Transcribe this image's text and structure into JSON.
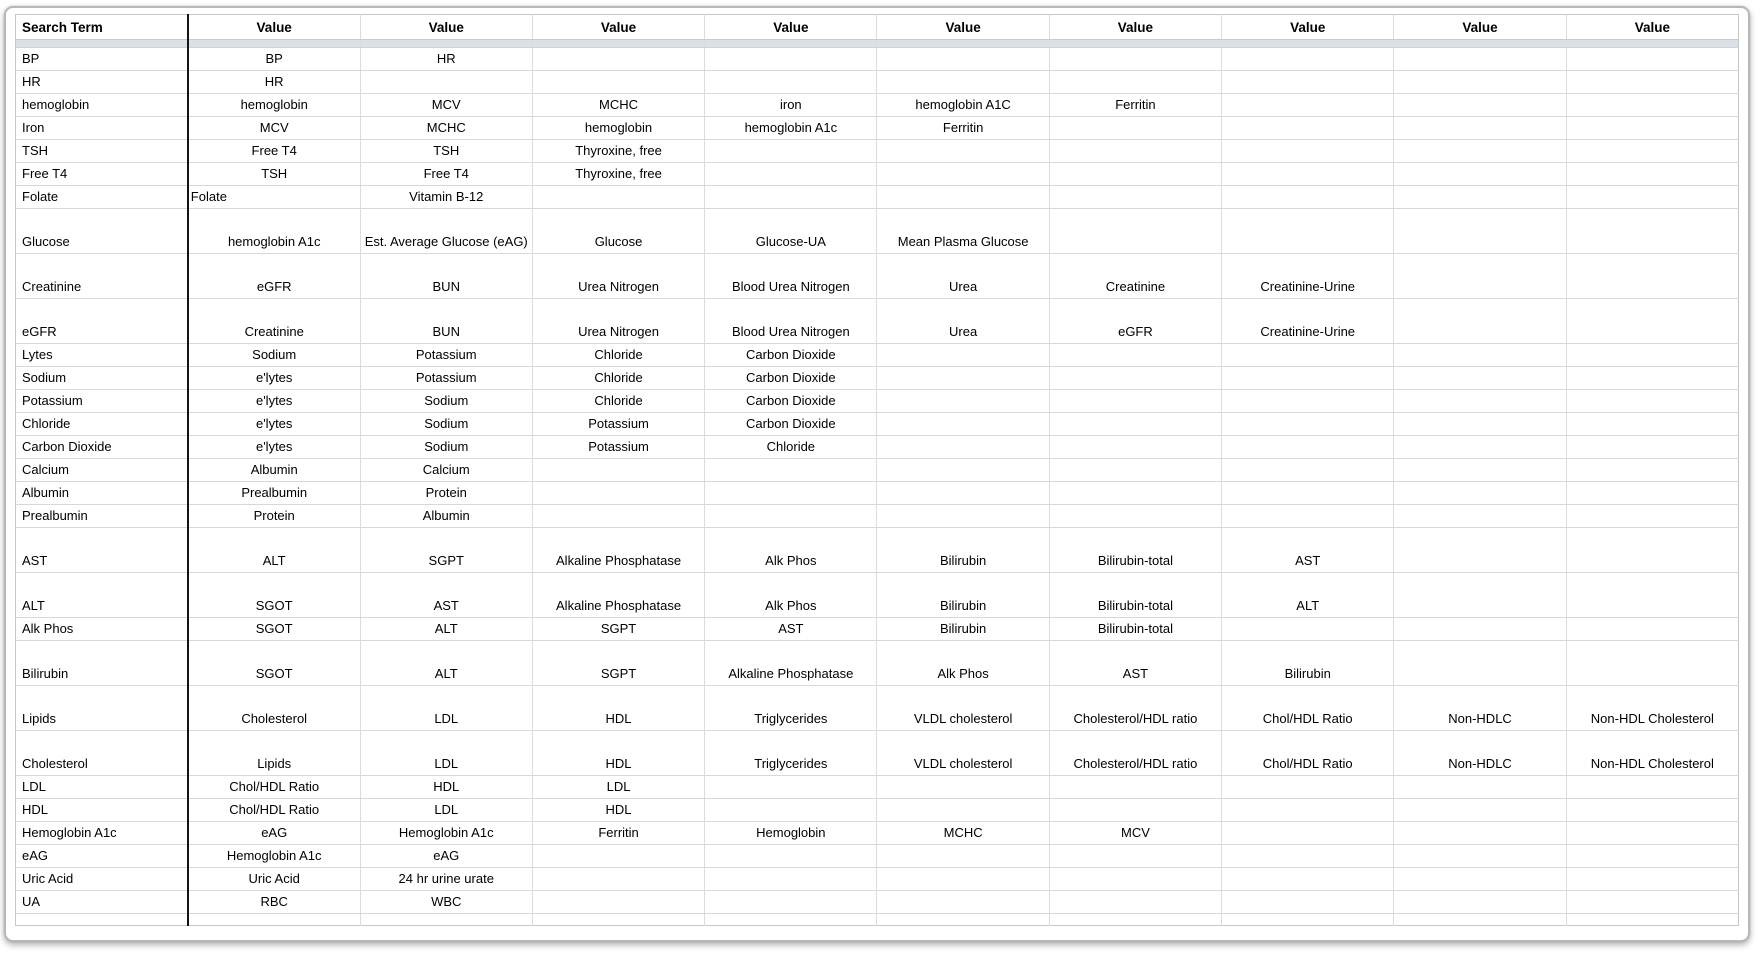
{
  "table": {
    "header": {
      "search_term": "Search Term",
      "value_headers": [
        "Value",
        "Value",
        "Value",
        "Value",
        "Value",
        "Value",
        "Value",
        "Value",
        "Value"
      ]
    },
    "colors": {
      "separator_band": "#dbe0e7",
      "grid_line": "#d8d8d8",
      "term_divider": "#141414",
      "frame_border": "#b4b8bd",
      "text": "#000000"
    },
    "rows": [
      {
        "term": "BP",
        "values": [
          "BP",
          "HR"
        ]
      },
      {
        "term": "HR",
        "values": [
          "HR"
        ]
      },
      {
        "term": "hemoglobin",
        "values": [
          "hemoglobin",
          "MCV",
          "MCHC",
          "iron",
          "hemoglobin A1C",
          "Ferritin"
        ]
      },
      {
        "term": "Iron",
        "values": [
          "MCV",
          "MCHC",
          "hemoglobin",
          "hemoglobin A1c",
          "Ferritin"
        ]
      },
      {
        "term": "TSH",
        "values": [
          "Free T4",
          "TSH",
          "Thyroxine, free"
        ]
      },
      {
        "term": "Free T4",
        "values": [
          "TSH",
          "Free T4",
          "Thyroxine, free"
        ]
      },
      {
        "term": "Folate",
        "values": [
          "Folate",
          "Vitamin B-12"
        ],
        "left_value_indexes": [
          0
        ]
      },
      {
        "term": "Glucose",
        "values": [
          "hemoglobin A1c",
          "Est. Average Glucose (eAG)",
          "Glucose",
          "Glucose-UA",
          "Mean Plasma Glucose"
        ],
        "tall": true
      },
      {
        "term": "Creatinine",
        "values": [
          "eGFR",
          "BUN",
          "Urea Nitrogen",
          "Blood Urea Nitrogen",
          "Urea",
          "Creatinine",
          "Creatinine-Urine"
        ],
        "tall": true
      },
      {
        "term": "eGFR",
        "values": [
          "Creatinine",
          "BUN",
          "Urea Nitrogen",
          "Blood Urea Nitrogen",
          "Urea",
          "eGFR",
          "Creatinine-Urine"
        ],
        "tall": true
      },
      {
        "term": "Lytes",
        "values": [
          "Sodium",
          "Potassium",
          "Chloride",
          "Carbon Dioxide"
        ]
      },
      {
        "term": "Sodium",
        "values": [
          "e'lytes",
          "Potassium",
          "Chloride",
          "Carbon Dioxide"
        ]
      },
      {
        "term": "Potassium",
        "values": [
          "e'lytes",
          "Sodium",
          "Chloride",
          "Carbon Dioxide"
        ]
      },
      {
        "term": "Chloride",
        "values": [
          "e'lytes",
          "Sodium",
          "Potassium",
          "Carbon Dioxide"
        ]
      },
      {
        "term": "Carbon Dioxide",
        "values": [
          "e'lytes",
          "Sodium",
          "Potassium",
          "Chloride"
        ]
      },
      {
        "term": "Calcium",
        "values": [
          "Albumin",
          "Calcium"
        ]
      },
      {
        "term": "Albumin",
        "values": [
          "Prealbumin",
          "Protein"
        ]
      },
      {
        "term": "Prealbumin",
        "values": [
          "Protein",
          "Albumin"
        ]
      },
      {
        "term": "AST",
        "values": [
          "ALT",
          "SGPT",
          "Alkaline Phosphatase",
          "Alk Phos",
          "Bilirubin",
          "Bilirubin-total",
          "AST"
        ],
        "tall": true
      },
      {
        "term": "ALT",
        "values": [
          "SGOT",
          "AST",
          "Alkaline Phosphatase",
          "Alk Phos",
          "Bilirubin",
          "Bilirubin-total",
          "ALT"
        ],
        "tall": true
      },
      {
        "term": "Alk Phos",
        "values": [
          "SGOT",
          "ALT",
          "SGPT",
          "AST",
          "Bilirubin",
          "Bilirubin-total"
        ]
      },
      {
        "term": "Bilirubin",
        "values": [
          "SGOT",
          "ALT",
          "SGPT",
          "Alkaline Phosphatase",
          "Alk Phos",
          "AST",
          "Bilirubin"
        ],
        "tall": true
      },
      {
        "term": "Lipids",
        "values": [
          "Cholesterol",
          "LDL",
          "HDL",
          "Triglycerides",
          "VLDL cholesterol",
          "Cholesterol/HDL ratio",
          "Chol/HDL Ratio",
          "Non-HDLC",
          "Non-HDL Cholesterol"
        ],
        "tall": true
      },
      {
        "term": "Cholesterol",
        "values": [
          "Lipids",
          "LDL",
          "HDL",
          "Triglycerides",
          "VLDL cholesterol",
          "Cholesterol/HDL ratio",
          "Chol/HDL Ratio",
          "Non-HDLC",
          "Non-HDL Cholesterol"
        ],
        "tall": true
      },
      {
        "term": "LDL",
        "values": [
          "Chol/HDL Ratio",
          "HDL",
          "LDL"
        ]
      },
      {
        "term": "HDL",
        "values": [
          "Chol/HDL Ratio",
          "LDL",
          "HDL"
        ]
      },
      {
        "term": "Hemoglobin A1c",
        "values": [
          "eAG",
          "Hemoglobin A1c",
          "Ferritin",
          "Hemoglobin",
          "MCHC",
          "MCV"
        ]
      },
      {
        "term": "eAG",
        "values": [
          "Hemoglobin A1c",
          "eAG"
        ]
      },
      {
        "term": "Uric Acid",
        "values": [
          "Uric Acid",
          "24 hr urine urate"
        ]
      },
      {
        "term": "UA",
        "values": [
          "RBC",
          "WBC"
        ]
      }
    ]
  }
}
